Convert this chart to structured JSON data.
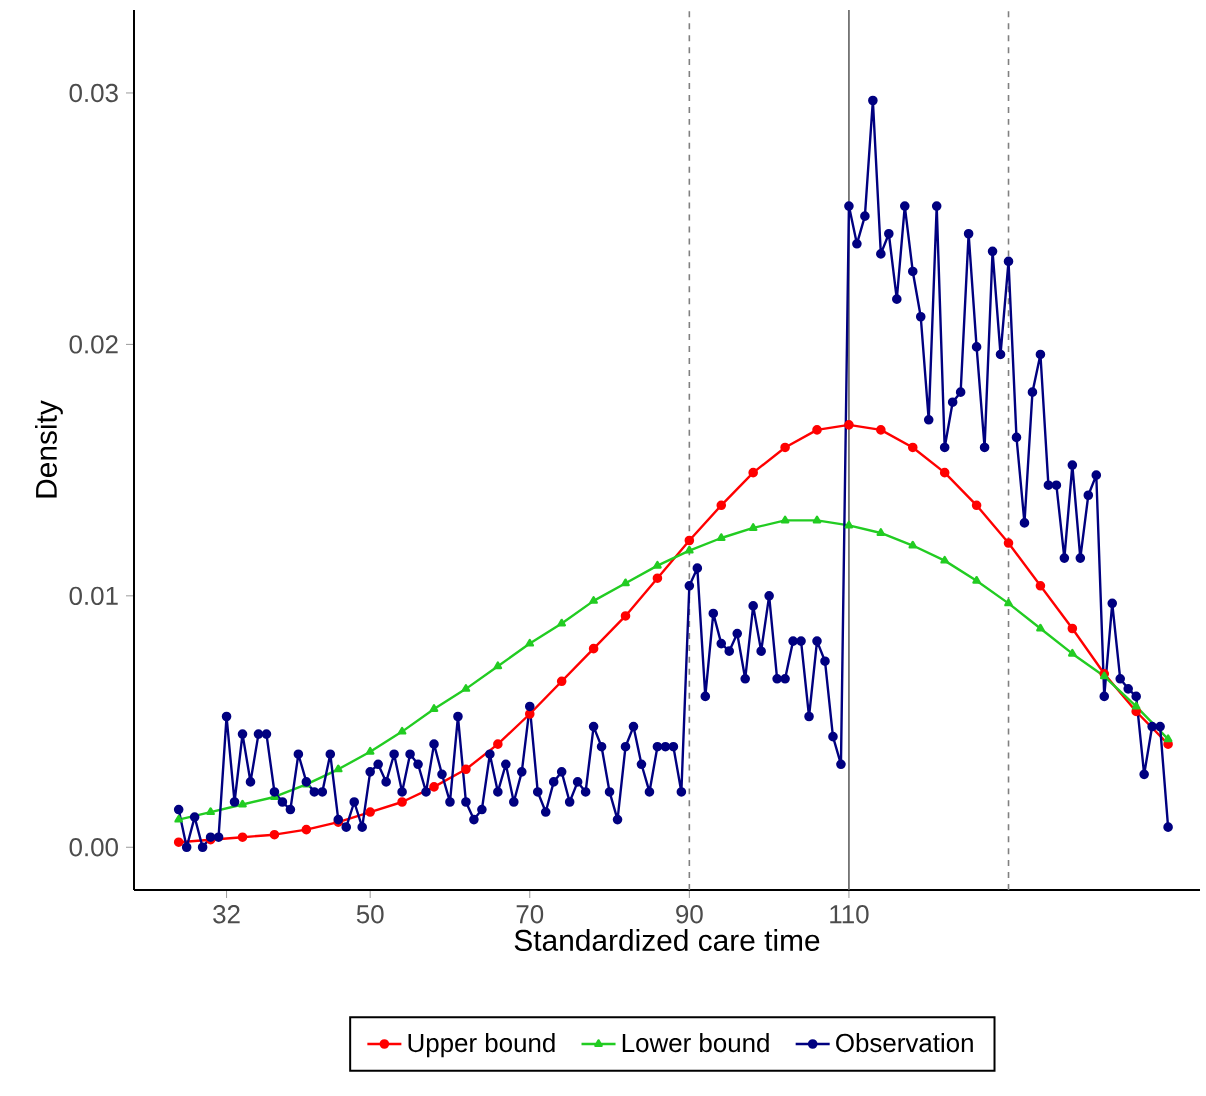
{
  "chart_data": {
    "type": "line",
    "xlabel": "Standardized care time",
    "ylabel": "Density",
    "xlim": [
      20.4,
      154
    ],
    "ylim": [
      -0.0017,
      0.0333
    ],
    "xticks": [
      32,
      50,
      70,
      90,
      110
    ],
    "yticks": [
      {
        "value": 0,
        "label": "0.00"
      },
      {
        "value": 0.01,
        "label": "0.01"
      },
      {
        "value": 0.02,
        "label": "0.02"
      },
      {
        "value": 0.03,
        "label": "0.03"
      }
    ],
    "grid": false,
    "legend": "bottom",
    "ref_lines": [
      {
        "axis": "x",
        "value": 90,
        "color": "#808080",
        "line_style": "dashed"
      },
      {
        "axis": "x",
        "value": 110,
        "color": "#606060",
        "line_style": "solid"
      },
      {
        "axis": "x",
        "value": 130,
        "color": "#808080",
        "line_style": "dashed"
      }
    ],
    "series": [
      {
        "name": "Upper bound",
        "color": "#ff0000",
        "marker": "circle",
        "x": [
          26,
          30,
          34,
          38,
          42,
          46,
          50,
          54,
          58,
          62,
          66,
          70,
          74,
          78,
          82,
          86,
          90,
          94,
          98,
          102,
          106,
          110,
          114,
          118,
          122,
          126,
          130,
          134,
          138,
          142,
          146,
          150
        ],
        "values": [
          0.0002,
          0.0003,
          0.0004,
          0.0005,
          0.0007,
          0.001,
          0.0014,
          0.0018,
          0.0024,
          0.0031,
          0.0041,
          0.0053,
          0.0066,
          0.0079,
          0.0092,
          0.0107,
          0.0122,
          0.0136,
          0.0149,
          0.0159,
          0.0166,
          0.0168,
          0.0166,
          0.0159,
          0.0149,
          0.0136,
          0.0121,
          0.0104,
          0.0087,
          0.0069,
          0.0054,
          0.0041
        ]
      },
      {
        "name": "Lower bound",
        "color": "#22cc22",
        "marker": "triangle",
        "x": [
          26,
          30,
          34,
          38,
          42,
          46,
          50,
          54,
          58,
          62,
          66,
          70,
          74,
          78,
          82,
          86,
          90,
          94,
          98,
          102,
          106,
          110,
          114,
          118,
          122,
          126,
          130,
          134,
          138,
          142,
          146,
          150
        ],
        "values": [
          0.0011,
          0.0014,
          0.0017,
          0.002,
          0.0025,
          0.0031,
          0.0038,
          0.0046,
          0.0055,
          0.0063,
          0.0072,
          0.0081,
          0.0089,
          0.0098,
          0.0105,
          0.0112,
          0.0118,
          0.0123,
          0.0127,
          0.013,
          0.013,
          0.0128,
          0.0125,
          0.012,
          0.0114,
          0.0106,
          0.0097,
          0.0087,
          0.0077,
          0.0068,
          0.0056,
          0.0043
        ]
      },
      {
        "name": "Observation",
        "color": "#000080",
        "marker": "circle",
        "x": [
          26,
          27,
          28,
          29,
          30,
          31,
          32,
          33,
          34,
          35,
          36,
          37,
          38,
          39,
          40,
          41,
          42,
          43,
          44,
          45,
          46,
          47,
          48,
          49,
          50,
          51,
          52,
          53,
          54,
          55,
          56,
          57,
          58,
          59,
          60,
          61,
          62,
          63,
          64,
          65,
          66,
          67,
          68,
          69,
          70,
          71,
          72,
          73,
          74,
          75,
          76,
          77,
          78,
          79,
          80,
          81,
          82,
          83,
          84,
          85,
          86,
          87,
          88,
          89,
          90,
          91,
          92,
          93,
          94,
          95,
          96,
          97,
          98,
          99,
          100,
          101,
          102,
          103,
          104,
          105,
          106,
          107,
          108,
          109,
          110,
          111,
          112,
          113,
          114,
          115,
          116,
          117,
          118,
          119,
          120,
          121,
          122,
          123,
          124,
          125,
          126,
          127,
          128,
          129,
          130,
          131,
          132,
          133,
          134,
          135,
          136,
          137,
          138,
          139,
          140,
          141,
          142,
          143,
          144,
          145,
          146,
          147,
          148,
          149,
          150
        ],
        "values": [
          0.0015,
          0.0,
          0.0012,
          0.0,
          0.0004,
          0.0004,
          0.0052,
          0.0018,
          0.0045,
          0.0026,
          0.0045,
          0.0045,
          0.0022,
          0.0018,
          0.0015,
          0.0037,
          0.0026,
          0.0022,
          0.0022,
          0.0037,
          0.0011,
          0.0008,
          0.0018,
          0.0008,
          0.003,
          0.0033,
          0.0026,
          0.0037,
          0.0022,
          0.0037,
          0.0033,
          0.0022,
          0.0041,
          0.0029,
          0.0018,
          0.0052,
          0.0018,
          0.0011,
          0.0015,
          0.0037,
          0.0022,
          0.0033,
          0.0018,
          0.003,
          0.0056,
          0.0022,
          0.0014,
          0.0026,
          0.003,
          0.0018,
          0.0026,
          0.0022,
          0.0048,
          0.004,
          0.0022,
          0.0011,
          0.004,
          0.0048,
          0.0033,
          0.0022,
          0.004,
          0.004,
          0.004,
          0.0022,
          0.0104,
          0.0111,
          0.006,
          0.0093,
          0.0081,
          0.0078,
          0.0085,
          0.0067,
          0.0096,
          0.0078,
          0.01,
          0.0067,
          0.0067,
          0.0082,
          0.0082,
          0.0052,
          0.0082,
          0.0074,
          0.0044,
          0.0033,
          0.0255,
          0.024,
          0.0251,
          0.0297,
          0.0236,
          0.0244,
          0.0218,
          0.0255,
          0.0229,
          0.0211,
          0.017,
          0.0255,
          0.0159,
          0.0177,
          0.0181,
          0.0244,
          0.0199,
          0.0159,
          0.0237,
          0.0196,
          0.0233,
          0.0163,
          0.0129,
          0.0181,
          0.0196,
          0.0144,
          0.0144,
          0.0115,
          0.0152,
          0.0115,
          0.014,
          0.0148,
          0.006,
          0.0097,
          0.0067,
          0.0063,
          0.006,
          0.0029,
          0.0048,
          0.0048,
          0.0008
        ]
      }
    ]
  }
}
